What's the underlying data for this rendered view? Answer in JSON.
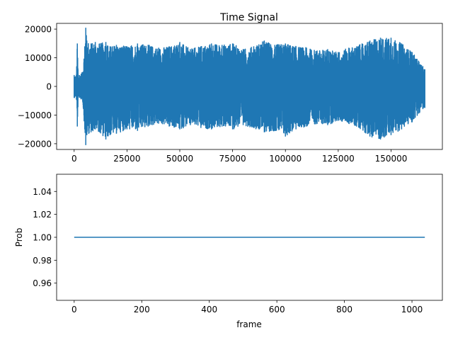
{
  "colors": {
    "series": "#1f77b4",
    "axis": "#000000",
    "background": "#ffffff"
  },
  "chart_data": [
    {
      "type": "line",
      "title": "Time Signal",
      "xlabel": "",
      "ylabel": "",
      "xlim": [
        -8300,
        174300
      ],
      "ylim": [
        -22000,
        22000
      ],
      "xticks": [
        0,
        25000,
        50000,
        75000,
        100000,
        125000,
        150000
      ],
      "xtick_labels": [
        "0",
        "25000",
        "50000",
        "75000",
        "100000",
        "125000",
        "150000"
      ],
      "yticks": [
        -20000,
        -10000,
        0,
        10000,
        20000
      ],
      "ytick_labels": [
        "−20000",
        "−10000",
        "0",
        "10000",
        "20000"
      ],
      "grid": false,
      "series": [
        {
          "style": "dense oscillating waveform",
          "x_range": [
            0,
            166000
          ],
          "envelope_x": [
            0,
            1000,
            1500,
            2000,
            2500,
            4000,
            5000,
            5500,
            6000,
            8000,
            10000,
            12000,
            15000,
            17000,
            20000,
            25000,
            30000,
            35000,
            40000,
            45000,
            50000,
            55000,
            60000,
            65000,
            70000,
            75000,
            80000,
            85000,
            90000,
            95000,
            100000,
            105000,
            110000,
            115000,
            120000,
            125000,
            130000,
            135000,
            140000,
            145000,
            150000,
            155000,
            160000,
            163000,
            166000
          ],
          "envelope_max": [
            4000,
            3500,
            15000,
            3000,
            4000,
            5000,
            14000,
            20500,
            16000,
            15000,
            15500,
            15000,
            15500,
            14000,
            14500,
            14000,
            15000,
            14500,
            13500,
            14000,
            15500,
            13000,
            14000,
            15000,
            14500,
            15000,
            13000,
            14000,
            16000,
            14500,
            15000,
            14000,
            13500,
            12500,
            13000,
            12000,
            13500,
            14500,
            16000,
            17000,
            17000,
            15000,
            12000,
            9000,
            6000
          ],
          "envelope_min": [
            -4000,
            -3500,
            -14000,
            -3000,
            -4000,
            -5000,
            -15000,
            -20500,
            -17000,
            -16000,
            -15000,
            -16000,
            -18500,
            -17000,
            -16500,
            -15000,
            -15500,
            -14000,
            -13000,
            -14000,
            -15000,
            -13500,
            -14500,
            -15000,
            -14000,
            -15000,
            -13500,
            -14500,
            -16000,
            -15500,
            -17500,
            -15000,
            -14000,
            -13000,
            -13500,
            -12000,
            -13000,
            -14500,
            -17500,
            -18500,
            -17000,
            -15000,
            -12500,
            -9500,
            -7500
          ]
        }
      ]
    },
    {
      "type": "line",
      "title": "",
      "xlabel": "frame",
      "ylabel": "Prob",
      "xlim": [
        -52,
        1090
      ],
      "ylim": [
        0.945,
        1.055
      ],
      "xticks": [
        0,
        200,
        400,
        600,
        800,
        1000
      ],
      "xtick_labels": [
        "0",
        "200",
        "400",
        "600",
        "800",
        "1000"
      ],
      "yticks": [
        0.96,
        0.98,
        1.0,
        1.02,
        1.04
      ],
      "ytick_labels": [
        "0.96",
        "0.98",
        "1.00",
        "1.02",
        "1.04"
      ],
      "grid": false,
      "series": [
        {
          "x": [
            0,
            1038
          ],
          "y": [
            1.0,
            1.0
          ]
        }
      ]
    }
  ]
}
